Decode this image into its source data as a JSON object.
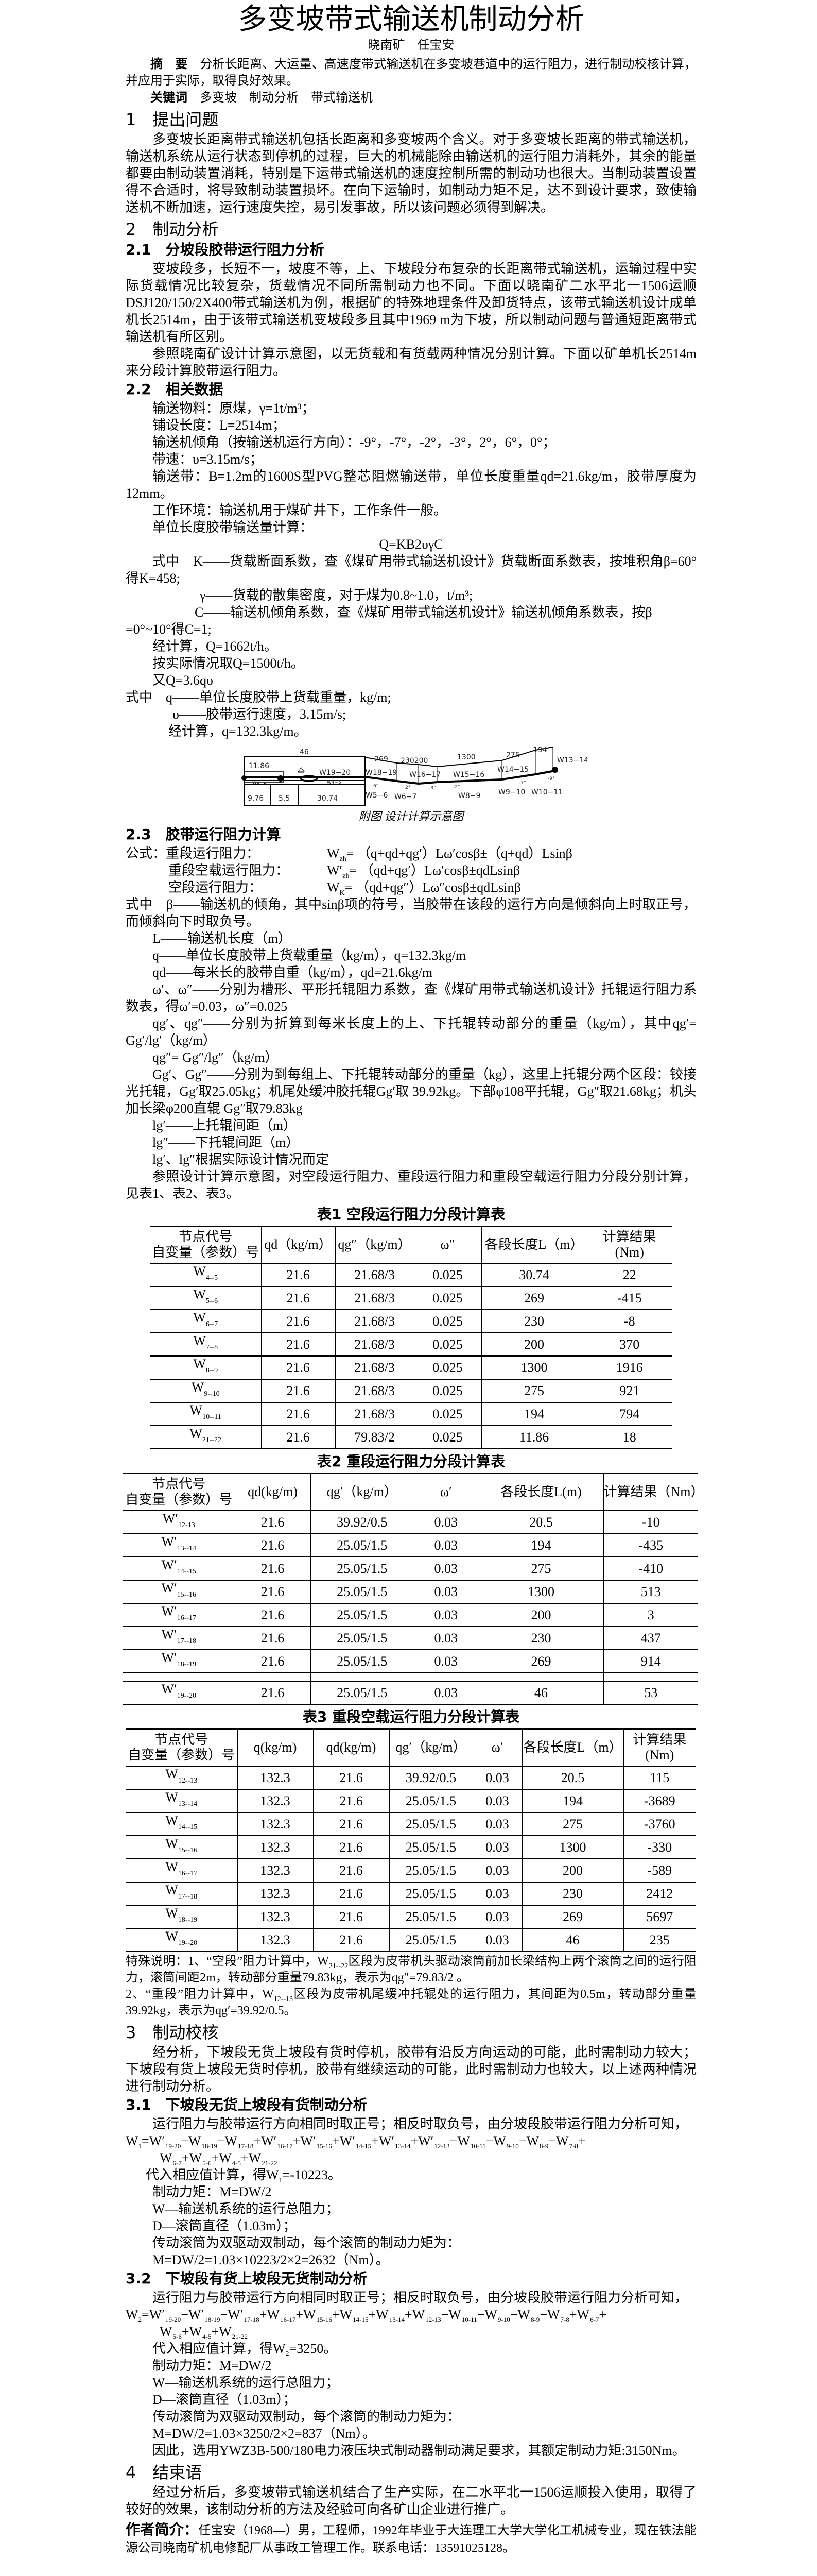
{
  "title": "多变坡带式输送机制动分析",
  "authors": "晓南矿　任宝安",
  "abstract": {
    "label": "摘　要",
    "text": "分析长距离、大运量、高速度带式输送机在多变坡巷道中的运行阻力，进行制动校核计算，并应用于实际，取得良好效果。"
  },
  "keywords": {
    "label": "关键词",
    "text": "多变坡　制动分析　带式输送机"
  },
  "s1": {
    "heading": "1　提出问题",
    "p1": "多变坡长距离带式输送机包括长距离和多变坡两个含义。对于多变坡长距离的带式输送机，输送机系统从运行状态到停机的过程，巨大的机械能除由输送机的运行阻力消耗外，其余的能量都要由制动装置消耗，特别是下运带式输送机的速度控制所需的制动功也很大。当制动装置设置得不合适时，将导致制动装置损坏。在向下运输时，如制动力矩不足，达不到设计要求，致使输送机不断加速，运行速度失控，易引发事故，所以该问题必须得到解决。"
  },
  "s2": {
    "heading": "2　制动分析",
    "s21": {
      "heading": "2.1　分坡段胶带运行阻力分析",
      "p1": "变坡段多，长短不一，坡度不等，上、下坡段分布复杂的长距离带式输送机，运输过程中实际货载情况比较复杂，货载情况不同所需制动力也不同。下面以晓南矿二水平北一1506运顺DSJ120/150/2X400带式输送机为例，根据矿的特殊地理条件及卸货特点，该带式输送机设计成单机长2514m，由于该带式输送机变坡段多且其中1969 m为下坡，所以制动问题与普通短距离带式输送机有所区别。",
      "p2": "参照晓南矿设计计算示意图，以无货载和有货载两种情况分别计算。下面以矿单机长2514m来分段计算胶带运行阻力。"
    },
    "s22": {
      "heading": "2.2　相关数据",
      "material": "输送物料：原煤，γ=1t/m³；",
      "length": "铺设长度：L=2514m；",
      "angles": "输送机倾角（按输送机运行方向）：-9°，-7°，-2°，-3°，2°，6°，0°；",
      "speed": "带速：υ=3.15m/s；",
      "belt": "输送带：B=1.2m的1600S型PVG整芯阻燃输送带，单位长度重量qd=21.6kg/m，胶带厚度为12mm。",
      "env": "工作环境：输送机用于煤矿井下，工作条件一般。",
      "calc_intro": "单位长度胶带输送量计算：",
      "formula": "Q=KB2υγC",
      "k_def": "式中　K——货载断面系数，查《煤矿用带式输送机设计》货载断面系数表，按堆积角β=60°得K=458;",
      "gamma_def": "γ——货载的散集密度，对于煤为0.8~1.0，t/m³;",
      "c_def": "C——输送机倾角系数，查《煤矿用带式输送机设计》输送机倾角系数表，按β",
      "c_def2": "=0°~10°得C=1;",
      "q_calc": "经计算，Q=1662t/h。",
      "q_take": "按实际情况取Q=1500t/h。",
      "q_rel": "又Q=3.6qυ",
      "q_def": "式中　q——单位长度胶带上货载重量，kg/m;",
      "v_def": "υ——胶带运行速度，3.15m/s;",
      "q_result": "经计算，q=132.3kg/m。"
    },
    "figure": {
      "caption": "附图 设计计算示意图",
      "labels": {
        "len46": "46",
        "len1186": "11.86",
        "len269": "269",
        "len230200": "230200",
        "len1300": "1300",
        "len275": "275",
        "len194": "194",
        "w1920": "W19−20",
        "w1819": "W18−19",
        "w1617": "W16−17",
        "w1516": "W15−16",
        "w1415": "W14−15",
        "w1314": "W13−14",
        "w12": "W1−2",
        "w45": "W4−5",
        "len976": "9.76",
        "len55": "5.5",
        "len3074": "30.74",
        "w56": "W5−6",
        "w67": "W6−7",
        "w89": "W8−9",
        "w910": "W9−10",
        "w1011": "W10−11",
        "a6": "6°",
        "a2": "2°",
        "am3": "-3°",
        "am2": "-2°",
        "am7": "-7°",
        "am9": "-9°"
      }
    },
    "s23": {
      "heading": "2.3　胶带运行阻力计算",
      "f1_label": "公式：重段运行阻力：",
      "f1": {
        "main": "W",
        "sub": "zh",
        "rest": "= （q+qd+qg′）Lω′cosβ±（q+qd）Lsinβ"
      },
      "f2_label": "重段空载运行阻力：",
      "f2": {
        "main": "W′",
        "sub": "zh",
        "rest": "= （qd+qg′）Lω′cosβ±qdLsinβ"
      },
      "f3_label": "空段运行阻力：",
      "f3": {
        "main": "W",
        "sub": "K",
        "rest": "= （qd+qg″）Lω″cosβ±qdLsinβ"
      },
      "beta_def": "式中　β——输送机的倾角，其中sinβ项的符号，当胶带在该段的运行方向是倾斜向上时取正号，而倾斜向下时取负号。",
      "l_def": "L——输送机长度（m）",
      "q_def": "q——单位长度胶带上货载重量（kg/m），q=132.3kg/m",
      "qd_def": "qd——每米长的胶带自重（kg/m），qd=21.6kg/m",
      "omega_def": "ω′、ω″——分别为槽形、平形托辊阻力系数，查《煤矿用带式输送机设计》托辊运行阻力系数表，得ω′=0.03，ω″=0.025",
      "qg_def": "qg′、qg″——分别为折算到每米长度上的上、下托辊转动部分的重量（kg/m），其中qg′= Gg′/lg′（kg/m）",
      "qg2_def": "qg″= Gg″/lg″（kg/m）",
      "gg_def": "Gg′、Gg″——分别为到每组上、下托辊转动部分的重量（kg），这里上托辊分两个区段：铰接光托辊，Gg′取25.05kg；机尾处缓冲胶托辊Gg′取 39.92kg。下部φ108平托辊，Gg″取21.68kg；机头加长梁φ200直辊 Gg″取79.83kg",
      "lg1_def": "lg′——上托辊间距（m）",
      "lg2_def": "lg″——下托辊间距（m）",
      "lg_note": "lg′、lg″根据实际设计情况而定",
      "ref": "参照设计计算示意图，对空段运行阻力、重段运行阻力和重段空载运行阻力分段分别计算，见表1、表2、表3。"
    }
  },
  "table1": {
    "title": "表1 空段运行阻力分段计算表",
    "header": [
      "节点代号\n自变量（参数）号",
      "qd（kg/m）",
      "qg″（kg/m）",
      "ω″",
      "各段长度L（m）",
      "计算结果\n(Nm)"
    ],
    "rows": [
      {
        "node": {
          "main": "W",
          "sub": "4--5"
        },
        "cells": [
          "21.6",
          "21.68/3",
          "0.025",
          "30.74",
          "22"
        ]
      },
      {
        "node": {
          "main": "W",
          "sub": "5--6"
        },
        "cells": [
          "21.6",
          "21.68/3",
          "0.025",
          "269",
          "-415"
        ]
      },
      {
        "node": {
          "main": "W",
          "sub": "6--7"
        },
        "cells": [
          "21.6",
          "21.68/3",
          "0.025",
          "230",
          "-8"
        ]
      },
      {
        "node": {
          "main": "W",
          "sub": "7--8"
        },
        "cells": [
          "21.6",
          "21.68/3",
          "0.025",
          "200",
          "370"
        ]
      },
      {
        "node": {
          "main": "W",
          "sub": "8--9"
        },
        "cells": [
          "21.6",
          "21.68/3",
          "0.025",
          "1300",
          "1916"
        ]
      },
      {
        "node": {
          "main": "W",
          "sub": "9--10"
        },
        "cells": [
          "21.6",
          "21.68/3",
          "0.025",
          "275",
          "921"
        ]
      },
      {
        "node": {
          "main": "W",
          "sub": "10--11"
        },
        "cells": [
          "21.6",
          "21.68/3",
          "0.025",
          "194",
          "794"
        ]
      },
      {
        "node": {
          "main": "W",
          "sub": "21--22"
        },
        "cells": [
          "21.6",
          "79.83/2",
          "0.025",
          "11.86",
          "18"
        ]
      }
    ]
  },
  "table2": {
    "title": "表2 重段运行阻力分段计算表",
    "header": [
      "节点代号\n自变量（参数）号",
      "qd(kg/m)",
      "qg′（kg/m）",
      "ω′",
      "各段长度L(m)",
      "计算结果（Nm）"
    ],
    "rows": [
      {
        "node": {
          "main": "W′",
          "sub": "12-13"
        },
        "cells": [
          "21.6",
          "39.92/0.5",
          "0.03",
          "20.5",
          "-10"
        ]
      },
      {
        "node": {
          "main": "W′",
          "sub": "13--14"
        },
        "cells": [
          "21.6",
          "25.05/1.5",
          "0.03",
          "194",
          "-435"
        ]
      },
      {
        "node": {
          "main": "W′",
          "sub": "14--15"
        },
        "cells": [
          "21.6",
          "25.05/1.5",
          "0.03",
          "275",
          "-410"
        ]
      },
      {
        "node": {
          "main": "W′",
          "sub": "15--16"
        },
        "cells": [
          "21.6",
          "25.05/1.5",
          "0.03",
          "1300",
          "513"
        ]
      },
      {
        "node": {
          "main": "W′",
          "sub": "16--17"
        },
        "cells": [
          "21.6",
          "25.05/1.5",
          "0.03",
          "200",
          "3"
        ]
      },
      {
        "node": {
          "main": "W′",
          "sub": "17--18"
        },
        "cells": [
          "21.6",
          "25.05/1.5",
          "0.03",
          "230",
          "437"
        ]
      },
      {
        "node": {
          "main": "W′",
          "sub": "18--19"
        },
        "cells": [
          "21.6",
          "25.05/1.5",
          "0.03",
          "269",
          "914"
        ]
      },
      {
        "node": null,
        "cells": []
      },
      {
        "node": {
          "main": "W′",
          "sub": "19--20"
        },
        "cells": [
          "21.6",
          "25.05/1.5",
          "0.03",
          "46",
          "53"
        ]
      }
    ]
  },
  "table3": {
    "title": "表3 重段空载运行阻力分段计算表",
    "header": [
      "节点代号\n自变量（参数）号",
      "q(kg/m)",
      "qd(kg/m)",
      "qg′（kg/m）",
      "ω′",
      "各段长度L（m）",
      "计算结果\n(Nm)"
    ],
    "rows": [
      {
        "node": {
          "main": "W",
          "sub": "12--13"
        },
        "cells": [
          "132.3",
          "21.6",
          "39.92/0.5",
          "0.03",
          "20.5",
          "115"
        ]
      },
      {
        "node": {
          "main": "W",
          "sub": "13--14"
        },
        "cells": [
          "132.3",
          "21.6",
          "25.05/1.5",
          "0.03",
          "194",
          "-3689"
        ]
      },
      {
        "node": {
          "main": "W",
          "sub": "14--15"
        },
        "cells": [
          "132.3",
          "21.6",
          "25.05/1.5",
          "0.03",
          "275",
          "-3760"
        ]
      },
      {
        "node": {
          "main": "W",
          "sub": "15--16"
        },
        "cells": [
          "132.3",
          "21.6",
          "25.05/1.5",
          "0.03",
          "1300",
          "-330"
        ]
      },
      {
        "node": {
          "main": "W",
          "sub": "16--17"
        },
        "cells": [
          "132.3",
          "21.6",
          "25.05/1.5",
          "0.03",
          "200",
          "-589"
        ]
      },
      {
        "node": {
          "main": "W",
          "sub": "17--18"
        },
        "cells": [
          "132.3",
          "21.6",
          "25.05/1.5",
          "0.03",
          "230",
          "2412"
        ]
      },
      {
        "node": {
          "main": "W",
          "sub": "18--19"
        },
        "cells": [
          "132.3",
          "21.6",
          "25.05/1.5",
          "0.03",
          "269",
          "5697"
        ]
      },
      {
        "node": {
          "main": "W",
          "sub": "19--20"
        },
        "cells": [
          "132.3",
          "21.6",
          "25.05/1.5",
          "0.03",
          "46",
          "235"
        ]
      }
    ]
  },
  "notes": [
    {
      "pre": "特殊说明：1、“空段”阻力计算中，W",
      "sub": "21--22",
      "post": "区段为皮带机头驱动滚筒前加长梁结构上两个滚筒之间的运行阻力，滚筒间距2m，转动部分重量79.83kg，表示为qg″=79.83/2 。"
    },
    {
      "pre": "2、“重段”阻力计算中，W",
      "sub": "12--13",
      "post": "区段为皮带机尾缓冲托辊处的运行阻力，其间距为0.5m，转动部分重量39.92kg，表示为qg′=39.92/0.5。"
    }
  ],
  "s3": {
    "heading": "3　制动校核",
    "p1": "经分析，下坡段无货上坡段有货时停机，胶带有沿反方向运动的可能，此时需制动力较大；下坡段有货上坡段无货时停机，胶带有继续运动的可能，此时需制动力也较大，以上述两种情况进行制动分析。",
    "s31": {
      "heading": "3.1　下坡段无货上坡段有货制动分析",
      "p1": "运行阻力与胶带运行方向相同时取正号；相反时取负号，由分坡段胶带运行阻力分析可知，",
      "lhs": {
        "main": "W",
        "sub": "1",
        "eq": "="
      },
      "terms1": [
        {
          "op": "",
          "w": "W′",
          "sub": "19-20"
        },
        {
          "op": "−",
          "w": "W",
          "sub": "18-19"
        },
        {
          "op": "−",
          "w": "W",
          "sub": "17-18"
        },
        {
          "op": "+",
          "w": "W′",
          "sub": "16-17"
        },
        {
          "op": "+",
          "w": "W′",
          "sub": "15-16"
        },
        {
          "op": "+",
          "w": "W′",
          "sub": "14-15"
        },
        {
          "op": "+",
          "w": "W′",
          "sub": "13-14"
        },
        {
          "op": "+",
          "w": "W′",
          "sub": "12-13"
        },
        {
          "op": "−",
          "w": "W",
          "sub": "10-11"
        },
        {
          "op": "−",
          "w": "W",
          "sub": "9-10"
        },
        {
          "op": "−",
          "w": "W",
          "sub": "8-9"
        },
        {
          "op": "−",
          "w": "W",
          "sub": "7-8"
        },
        {
          "op": "+",
          "w": "",
          "sub": ""
        }
      ],
      "terms2": [
        {
          "op": "",
          "w": "W",
          "sub": "6-7"
        },
        {
          "op": "+",
          "w": "W",
          "sub": "5-6"
        },
        {
          "op": "+",
          "w": "W",
          "sub": "4-5"
        },
        {
          "op": "+",
          "w": "W",
          "sub": "21-22"
        }
      ],
      "result": {
        "pre": "代入相应值计算，得W",
        "sub": "1",
        "post": "=-10223。"
      },
      "torque": "制动力矩：M=DW/2",
      "w_def": "W—输送机系统的运行总阻力；",
      "d_def": "D—滚筒直径（1.03m）；",
      "drive": "传动滚筒为双驱动双制动，每个滚筒的制动力矩为：",
      "m_calc": "M=DW/2=1.03×10223/2×2=2632（Nm）。"
    },
    "s32": {
      "heading": "3.2　下坡段有货上坡段无货制动分析",
      "p1": "运行阻力与胶带运行方向相同时取正号；相反时取负号，由分坡段胶带运行阻力分析可知，",
      "lhs": {
        "main": "W",
        "sub": "2",
        "eq": "="
      },
      "terms1": [
        {
          "op": "",
          "w": "W′",
          "sub": "19-20"
        },
        {
          "op": "−",
          "w": "W′",
          "sub": "18-19"
        },
        {
          "op": "−",
          "w": "W′",
          "sub": "17-18"
        },
        {
          "op": "+",
          "w": "W",
          "sub": "16-17"
        },
        {
          "op": "+",
          "w": "W",
          "sub": "15-16"
        },
        {
          "op": "+",
          "w": "W",
          "sub": "14-15"
        },
        {
          "op": "+",
          "w": "W",
          "sub": "13-14"
        },
        {
          "op": "+",
          "w": "W",
          "sub": "12-13"
        },
        {
          "op": "−",
          "w": "W",
          "sub": "10-11"
        },
        {
          "op": "−",
          "w": "W",
          "sub": "9-10"
        },
        {
          "op": "−",
          "w": "W",
          "sub": "8-9"
        },
        {
          "op": "−",
          "w": "W",
          "sub": "7-8"
        },
        {
          "op": "+",
          "w": "W",
          "sub": "6-7"
        },
        {
          "op": "+",
          "w": "",
          "sub": ""
        }
      ],
      "terms2": [
        {
          "op": "",
          "w": "W",
          "sub": "5-6"
        },
        {
          "op": "+",
          "w": "W",
          "sub": "4-5"
        },
        {
          "op": "+",
          "w": "W",
          "sub": "21-22"
        }
      ],
      "result": {
        "pre": "代入相应值计算，得W",
        "sub": "2",
        "post": "=3250。"
      },
      "torque": "制动力矩：M=DW/2",
      "w_def": "W—输送机系统的运行总阻力；",
      "d_def": "D—滚筒直径（1.03m）；",
      "drive": "传动滚筒为双驱动双制动，每个滚筒的制动力矩为：",
      "m_calc": "M=DW/2=1.03×3250/2×2=837（Nm）。"
    },
    "conclusion": "因此，选用YWZ3B-500/180电力液压块式制动器制动满足要求，其额定制动力矩:3150Nm。"
  },
  "s4": {
    "heading": "4　结束语",
    "p1": "经过分析后，多变坡带式输送机结合了生产实际，在二水平北一1506运顺投入使用，取得了较好的效果，该制动分析的方法及经验可向各矿山企业进行推广。"
  },
  "bio": {
    "label": "作者简介：",
    "text": "任宝安（1968—）男，工程师，1992年毕业于大连理工大学大学化工机械专业，现在铁法能源公司晓南矿机电修配厂从事政工管理工作。联系电话：13591025128。"
  }
}
